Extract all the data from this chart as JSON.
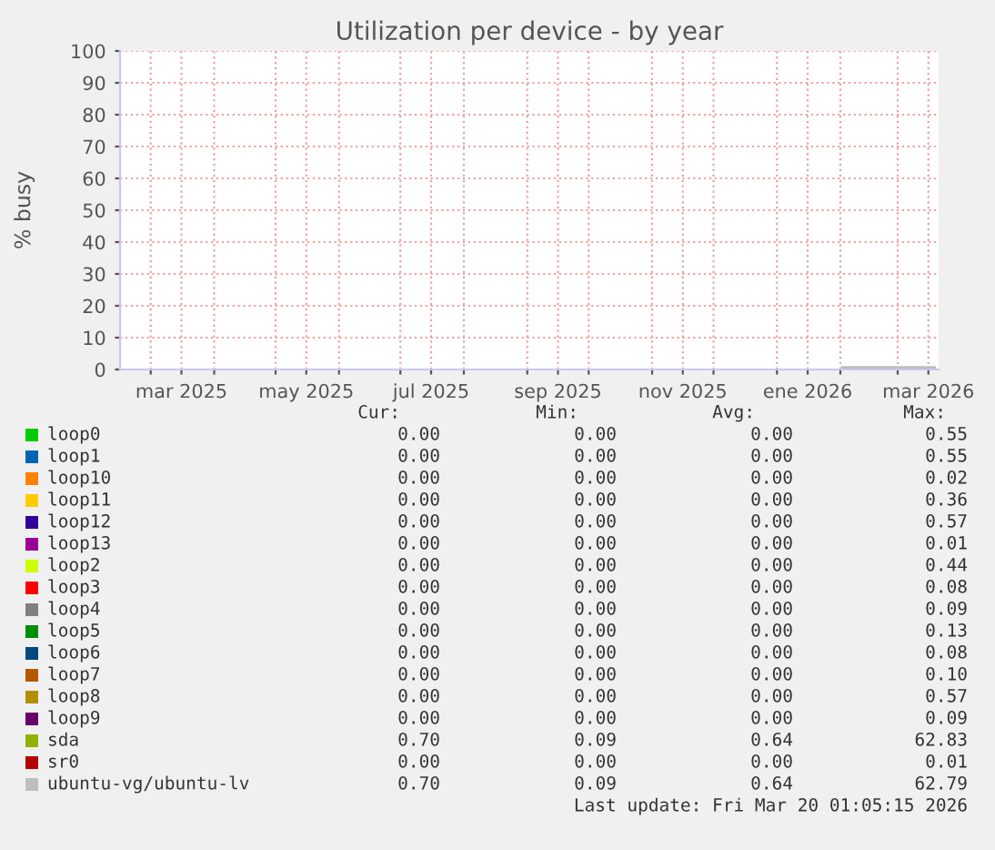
{
  "chart_data": {
    "type": "line",
    "title": "Utilization per device - by year",
    "ylabel": "% busy",
    "x": [
      "2026-02-02",
      "2026-03-19"
    ],
    "xlim": [
      "2025-02-14",
      "2026-03-21"
    ],
    "xticks": [
      {
        "value": "2025-03-01",
        "label": null
      },
      {
        "value": "2025-03-16",
        "label": "mar 2025"
      },
      {
        "value": "2025-04-01",
        "label": null
      },
      {
        "value": "2025-05-01",
        "label": null
      },
      {
        "value": "2025-05-16",
        "label": "may 2025"
      },
      {
        "value": "2025-06-01",
        "label": null
      },
      {
        "value": "2025-07-01",
        "label": null
      },
      {
        "value": "2025-07-16",
        "label": "jul 2025"
      },
      {
        "value": "2025-08-01",
        "label": null
      },
      {
        "value": "2025-09-01",
        "label": null
      },
      {
        "value": "2025-09-16",
        "label": "sep 2025"
      },
      {
        "value": "2025-10-01",
        "label": null
      },
      {
        "value": "2025-11-01",
        "label": null
      },
      {
        "value": "2025-11-16",
        "label": "nov 2025"
      },
      {
        "value": "2025-12-01",
        "label": null
      },
      {
        "value": "2026-01-01",
        "label": null
      },
      {
        "value": "2026-01-16",
        "label": "ene 2026"
      },
      {
        "value": "2026-02-01",
        "label": null
      },
      {
        "value": "2026-03-01",
        "label": null
      },
      {
        "value": "2026-03-16",
        "label": "mar 2026"
      }
    ],
    "ylim": [
      0,
      100
    ],
    "yticks": [
      0,
      10,
      20,
      30,
      40,
      50,
      60,
      70,
      80,
      90,
      100
    ],
    "grid": true,
    "legend": "bottom",
    "marker": "none",
    "line_style": "solid",
    "series": [
      {
        "name": "loop0",
        "color": "#00cc00",
        "values": [
          null,
          null
        ]
      },
      {
        "name": "loop1",
        "color": "#0066b3",
        "values": [
          null,
          null
        ]
      },
      {
        "name": "loop10",
        "color": "#ff8000",
        "values": [
          null,
          null
        ]
      },
      {
        "name": "loop11",
        "color": "#ffcc00",
        "values": [
          null,
          null
        ]
      },
      {
        "name": "loop12",
        "color": "#330099",
        "values": [
          null,
          null
        ]
      },
      {
        "name": "loop13",
        "color": "#990099",
        "values": [
          null,
          null
        ]
      },
      {
        "name": "loop2",
        "color": "#ccff00",
        "values": [
          null,
          null
        ]
      },
      {
        "name": "loop3",
        "color": "#ff0000",
        "values": [
          null,
          null
        ]
      },
      {
        "name": "loop4",
        "color": "#808080",
        "values": [
          null,
          null
        ]
      },
      {
        "name": "loop5",
        "color": "#008f00",
        "values": [
          null,
          null
        ]
      },
      {
        "name": "loop6",
        "color": "#00487d",
        "values": [
          null,
          null
        ]
      },
      {
        "name": "loop7",
        "color": "#b35a00",
        "values": [
          null,
          null
        ]
      },
      {
        "name": "loop8",
        "color": "#b38f00",
        "values": [
          null,
          null
        ]
      },
      {
        "name": "loop9",
        "color": "#6b006b",
        "values": [
          null,
          null
        ]
      },
      {
        "name": "sda",
        "color": "#8fb300",
        "values": [
          null,
          null
        ]
      },
      {
        "name": "sr0",
        "color": "#b30000",
        "values": [
          null,
          null
        ]
      },
      {
        "name": "ubuntu-vg/ubuntu-lv",
        "color": "#bebebe",
        "values": [
          0.6,
          0.6
        ]
      }
    ],
    "annotations": [
      "Cur:",
      "Min:",
      "Avg:",
      "Max:",
      "0.00",
      "0.00",
      "0.00",
      "0.55",
      "0.00",
      "0.00",
      "0.00",
      "0.55",
      "0.00",
      "0.00",
      "0.00",
      "0.02",
      "0.00",
      "0.00",
      "0.00",
      "0.36",
      "0.00",
      "0.00",
      "0.00",
      "0.57",
      "0.00",
      "0.00",
      "0.00",
      "0.01",
      "0.00",
      "0.00",
      "0.00",
      "0.44",
      "0.00",
      "0.00",
      "0.00",
      "0.08",
      "0.00",
      "0.00",
      "0.00",
      "0.09",
      "0.00",
      "0.00",
      "0.00",
      "0.13",
      "0.00",
      "0.00",
      "0.00",
      "0.08",
      "0.00",
      "0.00",
      "0.00",
      "0.10",
      "0.00",
      "0.00",
      "0.00",
      "0.57",
      "0.00",
      "0.00",
      "0.00",
      "0.09",
      "0.70",
      "0.09",
      "0.64",
      "62.83",
      "0.00",
      "0.00",
      "0.00",
      "0.01",
      "0.70",
      "0.09",
      "0.64",
      "62.79",
      "Last update: Fri Mar 20 01:05:15 2026"
    ]
  }
}
